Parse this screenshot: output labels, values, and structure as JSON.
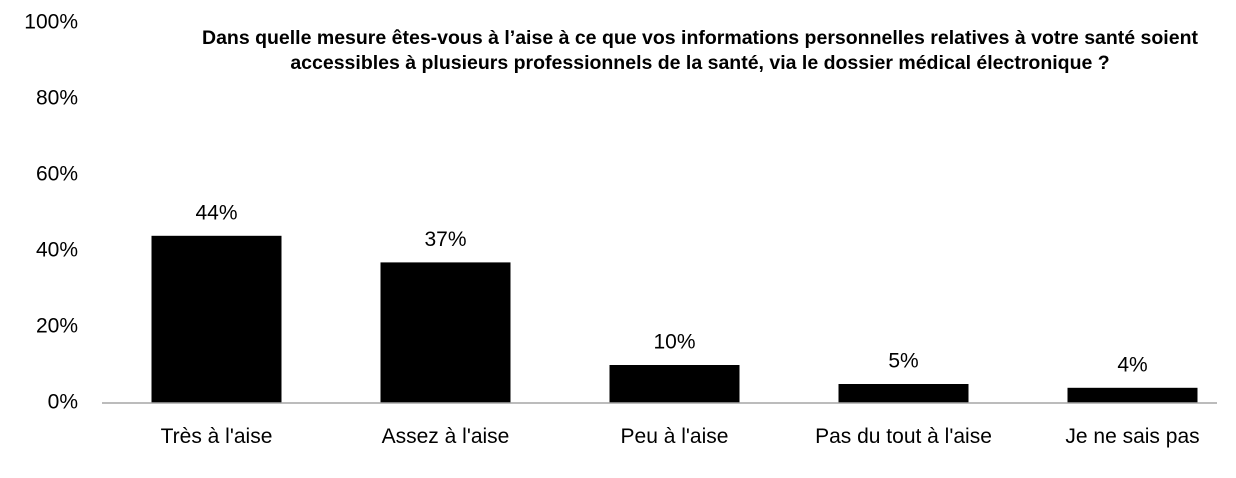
{
  "chart_data": {
    "type": "bar",
    "title": "Dans quelle mesure êtes-vous à l’aise à ce que vos informations personnelles relatives à votre santé soient accessibles à plusieurs professionnels de la santé, via le dossier médical électronique ?",
    "categories": [
      "Très à l'aise",
      "Assez à l'aise",
      "Peu à l'aise",
      "Pas du tout à l'aise",
      "Je ne sais pas"
    ],
    "values": [
      44,
      37,
      10,
      5,
      4
    ],
    "value_labels": [
      "44%",
      "37%",
      "10%",
      "5%",
      "4%"
    ],
    "color": "#000000",
    "ylim": [
      0,
      100
    ],
    "yticks": [
      {
        "value": 0,
        "label": "0%"
      },
      {
        "value": 20,
        "label": "20%"
      },
      {
        "value": 40,
        "label": "40%"
      },
      {
        "value": 60,
        "label": "60%"
      },
      {
        "value": 80,
        "label": "80%"
      },
      {
        "value": 100,
        "label": "100%"
      }
    ],
    "grid": false
  }
}
